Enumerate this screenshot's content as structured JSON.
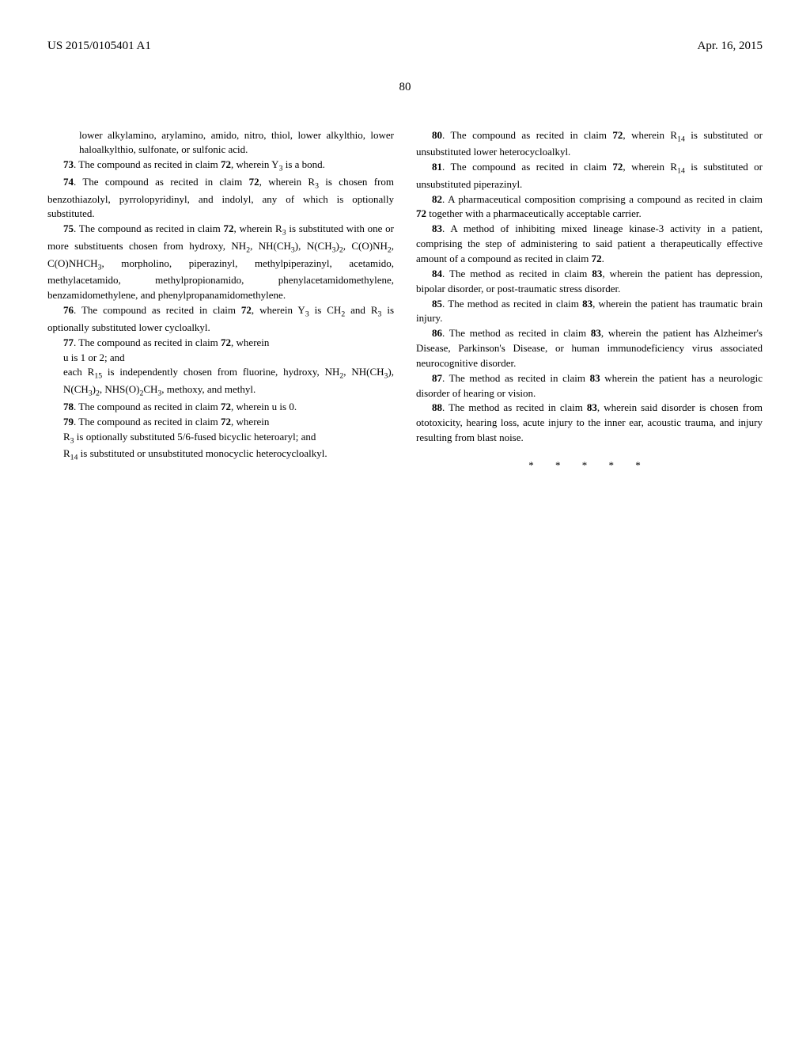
{
  "header": {
    "left": "US 2015/0105401 A1",
    "right": "Apr. 16, 2015"
  },
  "page_number": "80",
  "left_column": {
    "p1": "lower alkylamino, arylamino, amido, nitro, thiol, lower alkylthio, lower haloalkylthio, sulfonate, or sulfonic acid.",
    "p2_a": "73",
    "p2_b": ". The compound as recited in claim ",
    "p2_c": "72",
    "p2_d": ", wherein Y",
    "p2_e": " is a bond.",
    "p3_a": "74",
    "p3_b": ". The compound as recited in claim ",
    "p3_c": "72",
    "p3_d": ", wherein R",
    "p3_e": " is chosen from benzothiazolyl, pyrrolopyridinyl, and indolyl, any of which is optionally substituted.",
    "p4_a": "75",
    "p4_b": ". The compound as recited in claim ",
    "p4_c": "72",
    "p4_d": ", wherein R",
    "p4_e": " is substituted with one or more substituents chosen from hydroxy, NH",
    "p4_f": ", NH(CH",
    "p4_g": "), N(CH",
    "p4_h": ")",
    "p4_i": ", C(O)NH",
    "p4_j": ", C(O)NHCH",
    "p4_k": ", morpholino, piperazinyl, methylpiperazinyl, acetamido, methylacetamido, methylpropionamido, phenylacetamidomethylene, benzamidomethylene, and phenylpropanamidomethylene.",
    "p5_a": "76",
    "p5_b": ". The compound as recited in claim ",
    "p5_c": "72",
    "p5_d": ", wherein Y",
    "p5_e": " is CH",
    "p5_f": " and R",
    "p5_g": " is optionally substituted lower cycloalkyl.",
    "p6_a": "77",
    "p6_b": ". The compound as recited in claim ",
    "p6_c": "72",
    "p6_d": ", wherein",
    "p6_e": "u is 1 or 2; and",
    "p6_f": "each R",
    "p6_g": " is independently chosen from fluorine, hydroxy, NH",
    "p6_h": ", NH(CH",
    "p6_i": "), N(CH",
    "p6_j": ")",
    "p6_k": ", NHS(O)",
    "p6_l": "CH",
    "p6_m": ", methoxy, and methyl.",
    "p7_a": "78",
    "p7_b": ". The compound as recited in claim ",
    "p7_c": "72",
    "p7_d": ", wherein u is 0.",
    "p8_a": "79",
    "p8_b": ". The compound as recited in claim ",
    "p8_c": "72",
    "p8_d": ", wherein",
    "p8_e": "R",
    "p8_f": " is optionally substituted 5/6-fused bicyclic heteroaryl; and",
    "p8_g": "R",
    "p8_h": " is substituted or unsubstituted monocyclic heterocycloalkyl."
  },
  "right_column": {
    "p1_a": "80",
    "p1_b": ". The compound as recited in claim ",
    "p1_c": "72",
    "p1_d": ", wherein R",
    "p1_e": " is substituted or unsubstituted lower heterocycloalkyl.",
    "p2_a": "81",
    "p2_b": ". The compound as recited in claim ",
    "p2_c": "72",
    "p2_d": ", wherein R",
    "p2_e": " is substituted or unsubstituted piperazinyl.",
    "p3_a": "82",
    "p3_b": ". A pharmaceutical composition comprising a compound as recited in claim ",
    "p3_c": "72",
    "p3_d": " together with a pharmaceutically acceptable carrier.",
    "p4_a": "83",
    "p4_b": ". A method of inhibiting mixed lineage kinase-3 activity in a patient, comprising the step of administering to said patient a therapeutically effective amount of a compound as recited in claim ",
    "p4_c": "72",
    "p4_d": ".",
    "p5_a": "84",
    "p5_b": ". The method as recited in claim ",
    "p5_c": "83",
    "p5_d": ", wherein the patient has depression, bipolar disorder, or post-traumatic stress disorder.",
    "p6_a": "85",
    "p6_b": ". The method as recited in claim ",
    "p6_c": "83",
    "p6_d": ", wherein the patient has traumatic brain injury.",
    "p7_a": "86",
    "p7_b": ". The method as recited in claim ",
    "p7_c": "83",
    "p7_d": ", wherein the patient has Alzheimer's Disease, Parkinson's Disease, or human immunodeficiency virus associated neurocognitive disorder.",
    "p8_a": "87",
    "p8_b": ". The method as recited in claim ",
    "p8_c": "83",
    "p8_d": " wherein the patient has a neurologic disorder of hearing or vision.",
    "p9_a": "88",
    "p9_b": ". The method as recited in claim ",
    "p9_c": "83",
    "p9_d": ", wherein said disorder is chosen from ototoxicity, hearing loss, acute injury to the inner ear, acoustic trauma, and injury resulting from blast noise."
  },
  "stars": "* * * * *"
}
